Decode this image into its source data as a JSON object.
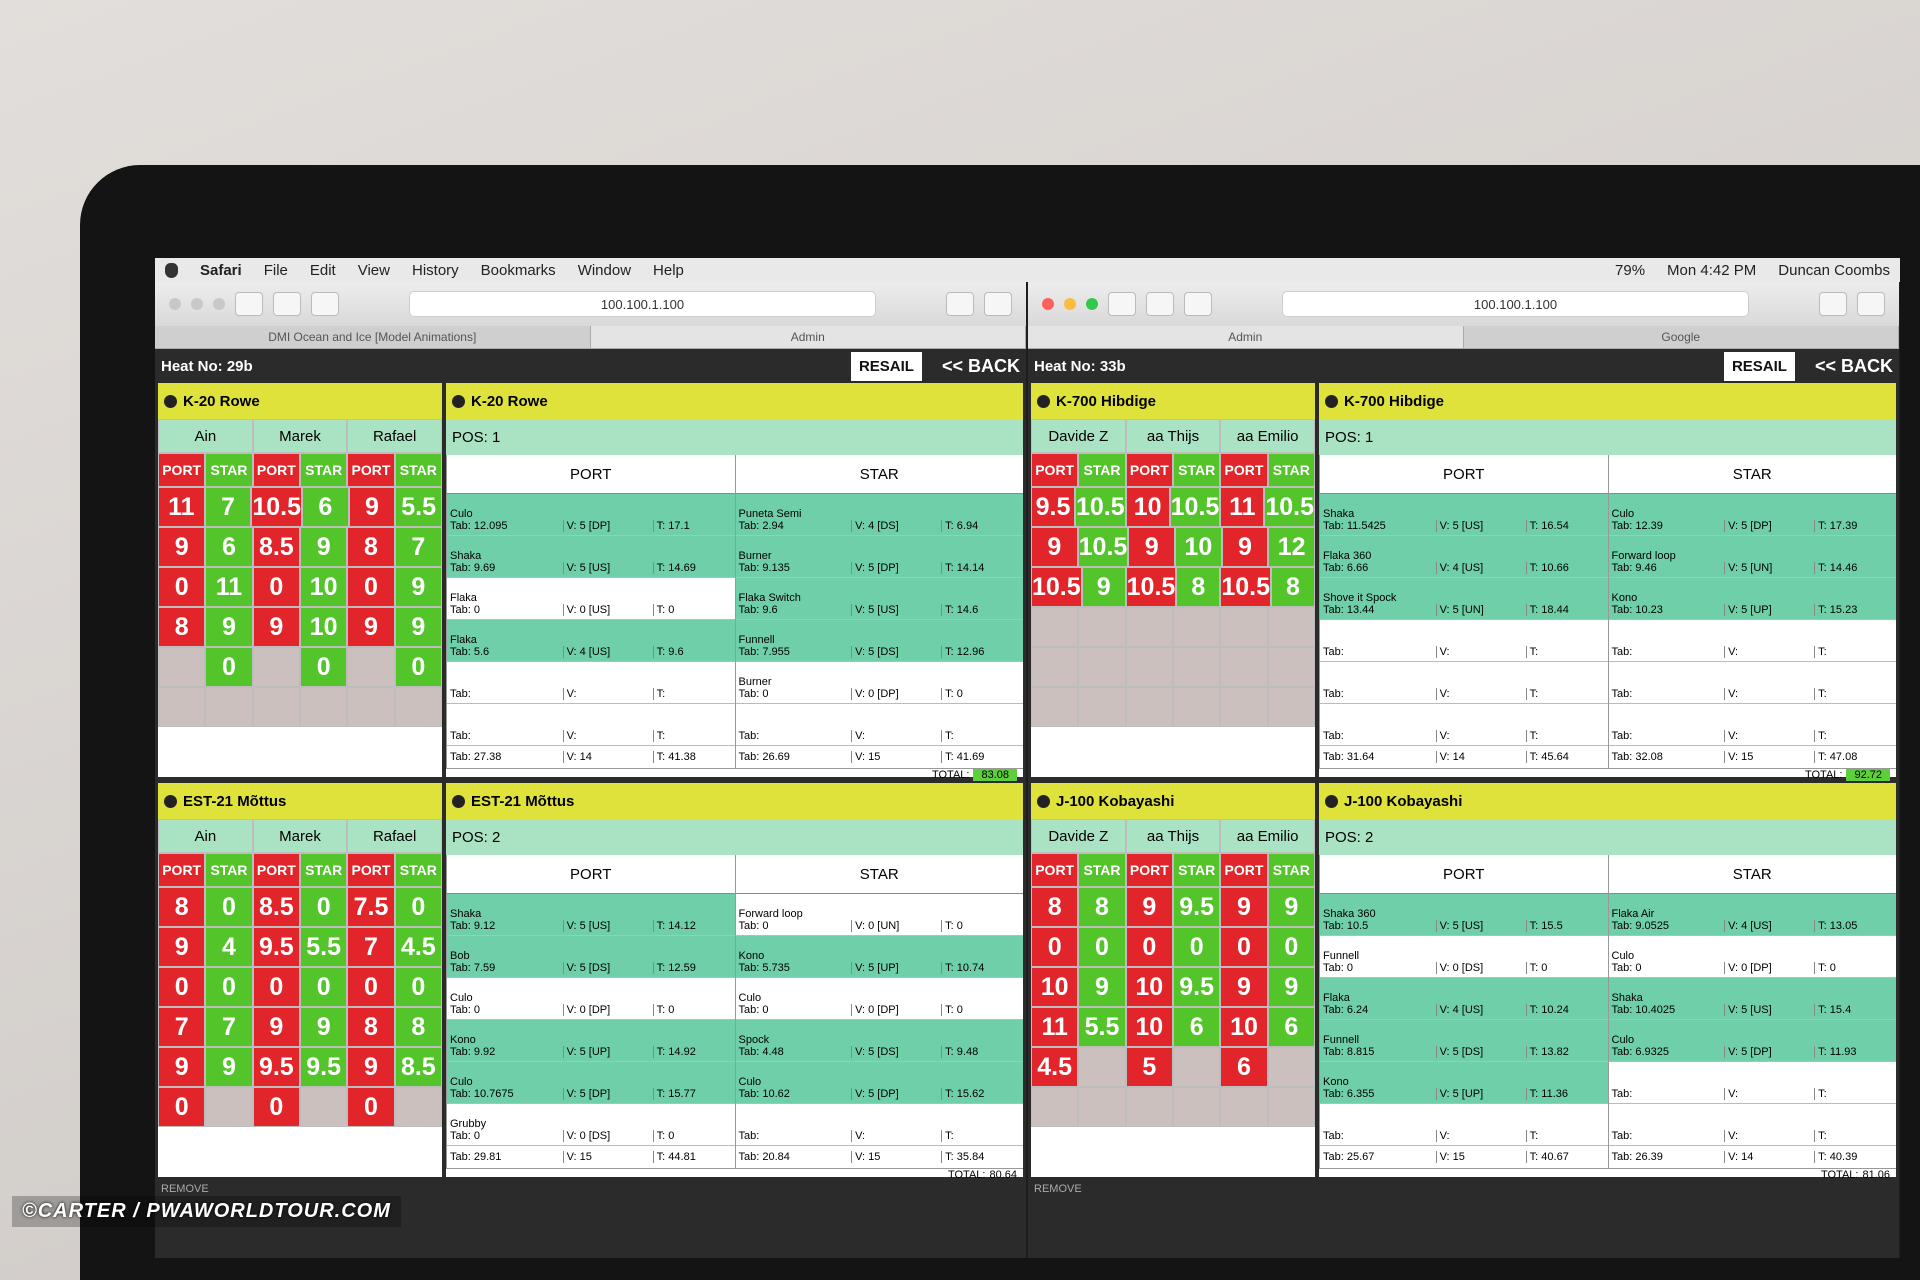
{
  "menubar": {
    "app": "Safari",
    "menus": [
      "File",
      "Edit",
      "View",
      "History",
      "Bookmarks",
      "Window",
      "Help"
    ],
    "battery": "79%",
    "clock": "Mon 4:42 PM",
    "user": "Duncan Coombs"
  },
  "windows": [
    {
      "url": "100.100.1.100",
      "tabs": [
        "DMI Ocean and Ice [Model Animations]",
        "Admin"
      ],
      "heat": "Heat No: 29b",
      "resail": "RESAIL",
      "back": "<< BACK",
      "remove": "REMOVE",
      "riders": [
        {
          "name": "K-20 Rowe",
          "judges": [
            "Ain",
            "Marek",
            "Rafael"
          ],
          "sides": [
            "PORT",
            "STAR"
          ],
          "scores": [
            [
              11,
              7,
              10.5,
              6,
              9,
              5.5
            ],
            [
              9,
              6,
              8.5,
              9,
              8,
              7
            ],
            [
              0,
              11,
              0,
              10,
              0,
              9
            ],
            [
              8,
              9,
              9,
              10,
              9,
              9
            ],
            [
              null,
              0,
              null,
              0,
              null,
              0
            ],
            [
              null,
              null,
              null,
              null,
              null,
              null
            ]
          ],
          "pos": "POS: 1",
          "port": {
            "label": "PORT",
            "waves": [
              {
                "trick": "Culo",
                "tab": "Tab: 12.095",
                "v": "V: 5 [DP]",
                "t": "T: 17.1"
              },
              {
                "trick": "Shaka",
                "tab": "Tab: 9.69",
                "v": "V: 5 [US]",
                "t": "T: 14.69"
              },
              {
                "trick": "Flaka",
                "tab": "Tab: 0",
                "v": "V: 0 [US]",
                "t": "T: 0"
              },
              {
                "trick": "Flaka",
                "tab": "Tab: 5.6",
                "v": "V: 4 [US]",
                "t": "T: 9.6"
              },
              {
                "trick": null,
                "tab": "Tab:",
                "v": "V:",
                "t": "T:"
              },
              {
                "trick": null,
                "tab": "Tab:",
                "v": "V:",
                "t": "T:"
              }
            ],
            "sum": {
              "tab": "Tab: 27.38",
              "v": "V: 14",
              "t": "T: 41.38"
            }
          },
          "star": {
            "label": "STAR",
            "waves": [
              {
                "trick": "Puneta Semi",
                "tab": "Tab: 2.94",
                "v": "V: 4 [DS]",
                "t": "T: 6.94"
              },
              {
                "trick": "Burner",
                "tab": "Tab: 9.135",
                "v": "V: 5 [DP]",
                "t": "T: 14.14"
              },
              {
                "trick": "Flaka Switch",
                "tab": "Tab: 9.6",
                "v": "V: 5 [US]",
                "t": "T: 14.6"
              },
              {
                "trick": "Funnell",
                "tab": "Tab: 7.955",
                "v": "V: 5 [DS]",
                "t": "T: 12.96"
              },
              {
                "trick": "Burner",
                "tab": "Tab: 0",
                "v": "V: 0 [DP]",
                "t": "T: 0"
              },
              {
                "trick": null,
                "tab": "Tab:",
                "v": "V:",
                "t": "T:"
              }
            ],
            "sum": {
              "tab": "Tab: 26.69",
              "v": "V: 15",
              "t": "T: 41.69"
            }
          },
          "total_label": "TOTAL:",
          "total": 83.08
        },
        {
          "name": "EST-21 Mõttus",
          "judges": [
            "Ain",
            "Marek",
            "Rafael"
          ],
          "sides": [
            "PORT",
            "STAR"
          ],
          "scores": [
            [
              8,
              0,
              8.5,
              0,
              7.5,
              0
            ],
            [
              9,
              4,
              9.5,
              5.5,
              7,
              4.5
            ],
            [
              0,
              0,
              0,
              0,
              0,
              0
            ],
            [
              7,
              7,
              9,
              9,
              8,
              8
            ],
            [
              9,
              9,
              9.5,
              9.5,
              9,
              8.5
            ],
            [
              0,
              null,
              0,
              null,
              0,
              null
            ]
          ],
          "pos": "POS: 2",
          "port": {
            "label": "PORT",
            "waves": [
              {
                "trick": "Shaka",
                "tab": "Tab: 9.12",
                "v": "V: 5 [US]",
                "t": "T: 14.12"
              },
              {
                "trick": "Bob",
                "tab": "Tab: 7.59",
                "v": "V: 5 [DS]",
                "t": "T: 12.59"
              },
              {
                "trick": "Culo",
                "tab": "Tab: 0",
                "v": "V: 0 [DP]",
                "t": "T: 0"
              },
              {
                "trick": "Kono",
                "tab": "Tab: 9.92",
                "v": "V: 5 [UP]",
                "t": "T: 14.92"
              },
              {
                "trick": "Culo",
                "tab": "Tab: 10.7675",
                "v": "V: 5 [DP]",
                "t": "T: 15.77"
              },
              {
                "trick": "Grubby",
                "tab": "Tab: 0",
                "v": "V: 0 [DS]",
                "t": "T: 0"
              }
            ],
            "sum": {
              "tab": "Tab: 29.81",
              "v": "V: 15",
              "t": "T: 44.81"
            }
          },
          "star": {
            "label": "STAR",
            "waves": [
              {
                "trick": "Forward loop",
                "tab": "Tab: 0",
                "v": "V: 0 [UN]",
                "t": "T: 0"
              },
              {
                "trick": "Kono",
                "tab": "Tab: 5.735",
                "v": "V: 5 [UP]",
                "t": "T: 10.74"
              },
              {
                "trick": "Culo",
                "tab": "Tab: 0",
                "v": "V: 0 [DP]",
                "t": "T: 0"
              },
              {
                "trick": "Spock",
                "tab": "Tab: 4.48",
                "v": "V: 5 [DS]",
                "t": "T: 9.48"
              },
              {
                "trick": "Culo",
                "tab": "Tab: 10.62",
                "v": "V: 5 [DP]",
                "t": "T: 15.62"
              },
              {
                "trick": null,
                "tab": "Tab:",
                "v": "V:",
                "t": "T:"
              }
            ],
            "sum": {
              "tab": "Tab: 20.84",
              "v": "V: 15",
              "t": "T: 35.84"
            }
          },
          "total_label": "TOTAL:",
          "total": 80.64
        }
      ]
    },
    {
      "url": "100.100.1.100",
      "tabs": [
        "Admin",
        "Google"
      ],
      "heat": "Heat No: 33b",
      "resail": "RESAIL",
      "back": "<< BACK",
      "remove": "REMOVE",
      "riders": [
        {
          "name": "K-700 Hibdige",
          "judges": [
            "Davide Z",
            "aa Thijs",
            "aa Emilio"
          ],
          "sides": [
            "PORT",
            "STAR"
          ],
          "scores": [
            [
              9.5,
              10.5,
              10,
              10.5,
              11,
              10.5
            ],
            [
              9,
              10.5,
              9,
              10,
              9,
              12
            ],
            [
              10.5,
              9,
              10.5,
              8,
              10.5,
              8
            ],
            [
              null,
              null,
              null,
              null,
              null,
              null
            ],
            [
              null,
              null,
              null,
              null,
              null,
              null
            ],
            [
              null,
              null,
              null,
              null,
              null,
              null
            ]
          ],
          "pos": "POS: 1",
          "port": {
            "label": "PORT",
            "waves": [
              {
                "trick": "Shaka",
                "tab": "Tab: 11.5425",
                "v": "V: 5 [US]",
                "t": "T: 16.54"
              },
              {
                "trick": "Flaka 360",
                "tab": "Tab: 6.66",
                "v": "V: 4 [US]",
                "t": "T: 10.66"
              },
              {
                "trick": "Shove it Spock",
                "tab": "Tab: 13.44",
                "v": "V: 5 [UN]",
                "t": "T: 18.44"
              },
              {
                "trick": null,
                "tab": "Tab:",
                "v": "V:",
                "t": "T:"
              },
              {
                "trick": null,
                "tab": "Tab:",
                "v": "V:",
                "t": "T:"
              },
              {
                "trick": null,
                "tab": "Tab:",
                "v": "V:",
                "t": "T:"
              }
            ],
            "sum": {
              "tab": "Tab: 31.64",
              "v": "V: 14",
              "t": "T: 45.64"
            }
          },
          "star": {
            "label": "STAR",
            "waves": [
              {
                "trick": "Culo",
                "tab": "Tab: 12.39",
                "v": "V: 5 [DP]",
                "t": "T: 17.39"
              },
              {
                "trick": "Forward loop",
                "tab": "Tab: 9.46",
                "v": "V: 5 [UN]",
                "t": "T: 14.46"
              },
              {
                "trick": "Kono",
                "tab": "Tab: 10.23",
                "v": "V: 5 [UP]",
                "t": "T: 15.23"
              },
              {
                "trick": null,
                "tab": "Tab:",
                "v": "V:",
                "t": "T:"
              },
              {
                "trick": null,
                "tab": "Tab:",
                "v": "V:",
                "t": "T:"
              },
              {
                "trick": null,
                "tab": "Tab:",
                "v": "V:",
                "t": "T:"
              }
            ],
            "sum": {
              "tab": "Tab: 32.08",
              "v": "V: 15",
              "t": "T: 47.08"
            }
          },
          "total_label": "TOTAL:",
          "total": 92.72
        },
        {
          "name": "J-100 Kobayashi",
          "judges": [
            "Davide Z",
            "aa Thijs",
            "aa Emilio"
          ],
          "sides": [
            "PORT",
            "STAR"
          ],
          "scores": [
            [
              8,
              8,
              9,
              9.5,
              9,
              9
            ],
            [
              0,
              0,
              0,
              0,
              0,
              0
            ],
            [
              10,
              9,
              10,
              9.5,
              9,
              9
            ],
            [
              11,
              5.5,
              10,
              6,
              10,
              6
            ],
            [
              4.5,
              null,
              5,
              null,
              6,
              null
            ],
            [
              null,
              null,
              null,
              null,
              null,
              null
            ]
          ],
          "pos": "POS: 2",
          "port": {
            "label": "PORT",
            "waves": [
              {
                "trick": "Shaka 360",
                "tab": "Tab: 10.5",
                "v": "V: 5 [US]",
                "t": "T: 15.5"
              },
              {
                "trick": "Funnell",
                "tab": "Tab: 0",
                "v": "V: 0 [DS]",
                "t": "T: 0"
              },
              {
                "trick": "Flaka",
                "tab": "Tab: 6.24",
                "v": "V: 4 [US]",
                "t": "T: 10.24"
              },
              {
                "trick": "Funnell",
                "tab": "Tab: 8.815",
                "v": "V: 5 [DS]",
                "t": "T: 13.82"
              },
              {
                "trick": "Kono",
                "tab": "Tab: 6.355",
                "v": "V: 5 [UP]",
                "t": "T: 11.36"
              },
              {
                "trick": null,
                "tab": "Tab:",
                "v": "V:",
                "t": "T:"
              }
            ],
            "sum": {
              "tab": "Tab: 25.67",
              "v": "V: 15",
              "t": "T: 40.67"
            }
          },
          "star": {
            "label": "STAR",
            "waves": [
              {
                "trick": "Flaka Air",
                "tab": "Tab: 9.0525",
                "v": "V: 4 [US]",
                "t": "T: 13.05"
              },
              {
                "trick": "Culo",
                "tab": "Tab: 0",
                "v": "V: 0 [DP]",
                "t": "T: 0"
              },
              {
                "trick": "Shaka",
                "tab": "Tab: 10.4025",
                "v": "V: 5 [US]",
                "t": "T: 15.4"
              },
              {
                "trick": "Culo",
                "tab": "Tab: 6.9325",
                "v": "V: 5 [DP]",
                "t": "T: 11.93"
              },
              {
                "trick": null,
                "tab": "Tab:",
                "v": "V:",
                "t": "T:"
              },
              {
                "trick": null,
                "tab": "Tab:",
                "v": "V:",
                "t": "T:"
              }
            ],
            "sum": {
              "tab": "Tab: 26.39",
              "v": "V: 14",
              "t": "T: 40.39"
            }
          },
          "total_label": "TOTAL:",
          "total": 81.06
        }
      ]
    }
  ],
  "watermark": "©CARTER / PWAWORLDTOUR.COM"
}
